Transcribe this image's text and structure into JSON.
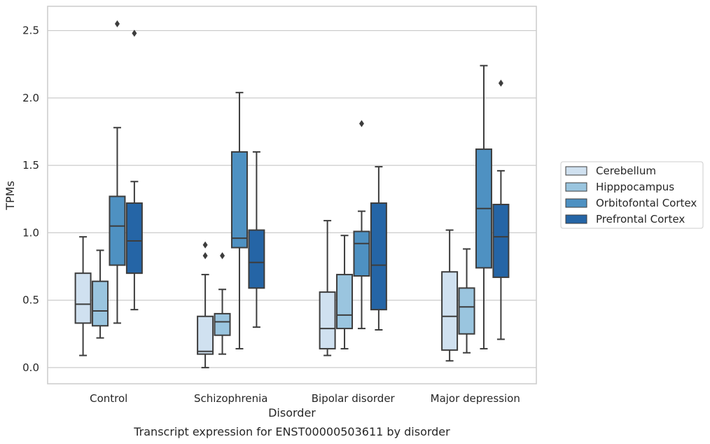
{
  "chart_data": {
    "type": "box",
    "caption": "Transcript expression for ENST00000503611 by disorder",
    "xlabel": "Disorder",
    "ylabel": "TPMs",
    "ylim": [
      -0.12,
      2.68
    ],
    "yticks": [
      "0.0",
      "0.5",
      "1.0",
      "1.5",
      "2.0",
      "2.5"
    ],
    "grid": true,
    "legend_position": "right",
    "categories": [
      "Control",
      "Schizophrenia",
      "Bipolar disorder",
      "Major depression"
    ],
    "series": [
      {
        "name": "Cerebellum",
        "color": "#d0e1f0",
        "boxes": [
          {
            "whislo": 0.09,
            "q1": 0.33,
            "med": 0.47,
            "q3": 0.7,
            "whishi": 0.97,
            "fliers": []
          },
          {
            "whislo": 0.0,
            "q1": 0.1,
            "med": 0.12,
            "q3": 0.38,
            "whishi": 0.69,
            "fliers": [
              0.83,
              0.91
            ]
          },
          {
            "whislo": 0.09,
            "q1": 0.14,
            "med": 0.29,
            "q3": 0.56,
            "whishi": 1.09,
            "fliers": []
          },
          {
            "whislo": 0.05,
            "q1": 0.13,
            "med": 0.38,
            "q3": 0.71,
            "whishi": 1.02,
            "fliers": []
          }
        ]
      },
      {
        "name": "Hipppocampus",
        "color": "#9ac5df",
        "boxes": [
          {
            "whislo": 0.22,
            "q1": 0.31,
            "med": 0.42,
            "q3": 0.64,
            "whishi": 0.87,
            "fliers": []
          },
          {
            "whislo": 0.1,
            "q1": 0.24,
            "med": 0.34,
            "q3": 0.4,
            "whishi": 0.58,
            "fliers": [
              0.83
            ]
          },
          {
            "whislo": 0.14,
            "q1": 0.29,
            "med": 0.39,
            "q3": 0.69,
            "whishi": 0.98,
            "fliers": []
          },
          {
            "whislo": 0.11,
            "q1": 0.25,
            "med": 0.45,
            "q3": 0.59,
            "whishi": 0.88,
            "fliers": []
          }
        ]
      },
      {
        "name": "Orbitofontal Cortex",
        "color": "#4e91c2",
        "boxes": [
          {
            "whislo": 0.33,
            "q1": 0.76,
            "med": 1.05,
            "q3": 1.27,
            "whishi": 1.78,
            "fliers": [
              2.55
            ]
          },
          {
            "whislo": 0.14,
            "q1": 0.89,
            "med": 0.96,
            "q3": 1.6,
            "whishi": 2.04,
            "fliers": []
          },
          {
            "whislo": 0.29,
            "q1": 0.68,
            "med": 0.92,
            "q3": 1.01,
            "whishi": 1.16,
            "fliers": [
              1.81
            ]
          },
          {
            "whislo": 0.14,
            "q1": 0.74,
            "med": 1.18,
            "q3": 1.62,
            "whishi": 2.24,
            "fliers": []
          }
        ]
      },
      {
        "name": "Prefrontal Cortex",
        "color": "#2565a6",
        "boxes": [
          {
            "whislo": 0.43,
            "q1": 0.7,
            "med": 0.94,
            "q3": 1.22,
            "whishi": 1.38,
            "fliers": [
              2.48
            ]
          },
          {
            "whislo": 0.3,
            "q1": 0.59,
            "med": 0.78,
            "q3": 1.02,
            "whishi": 1.6,
            "fliers": []
          },
          {
            "whislo": 0.28,
            "q1": 0.43,
            "med": 0.76,
            "q3": 1.22,
            "whishi": 1.49,
            "fliers": []
          },
          {
            "whislo": 0.21,
            "q1": 0.67,
            "med": 0.97,
            "q3": 1.21,
            "whishi": 1.46,
            "fliers": [
              2.11
            ]
          }
        ]
      }
    ]
  }
}
